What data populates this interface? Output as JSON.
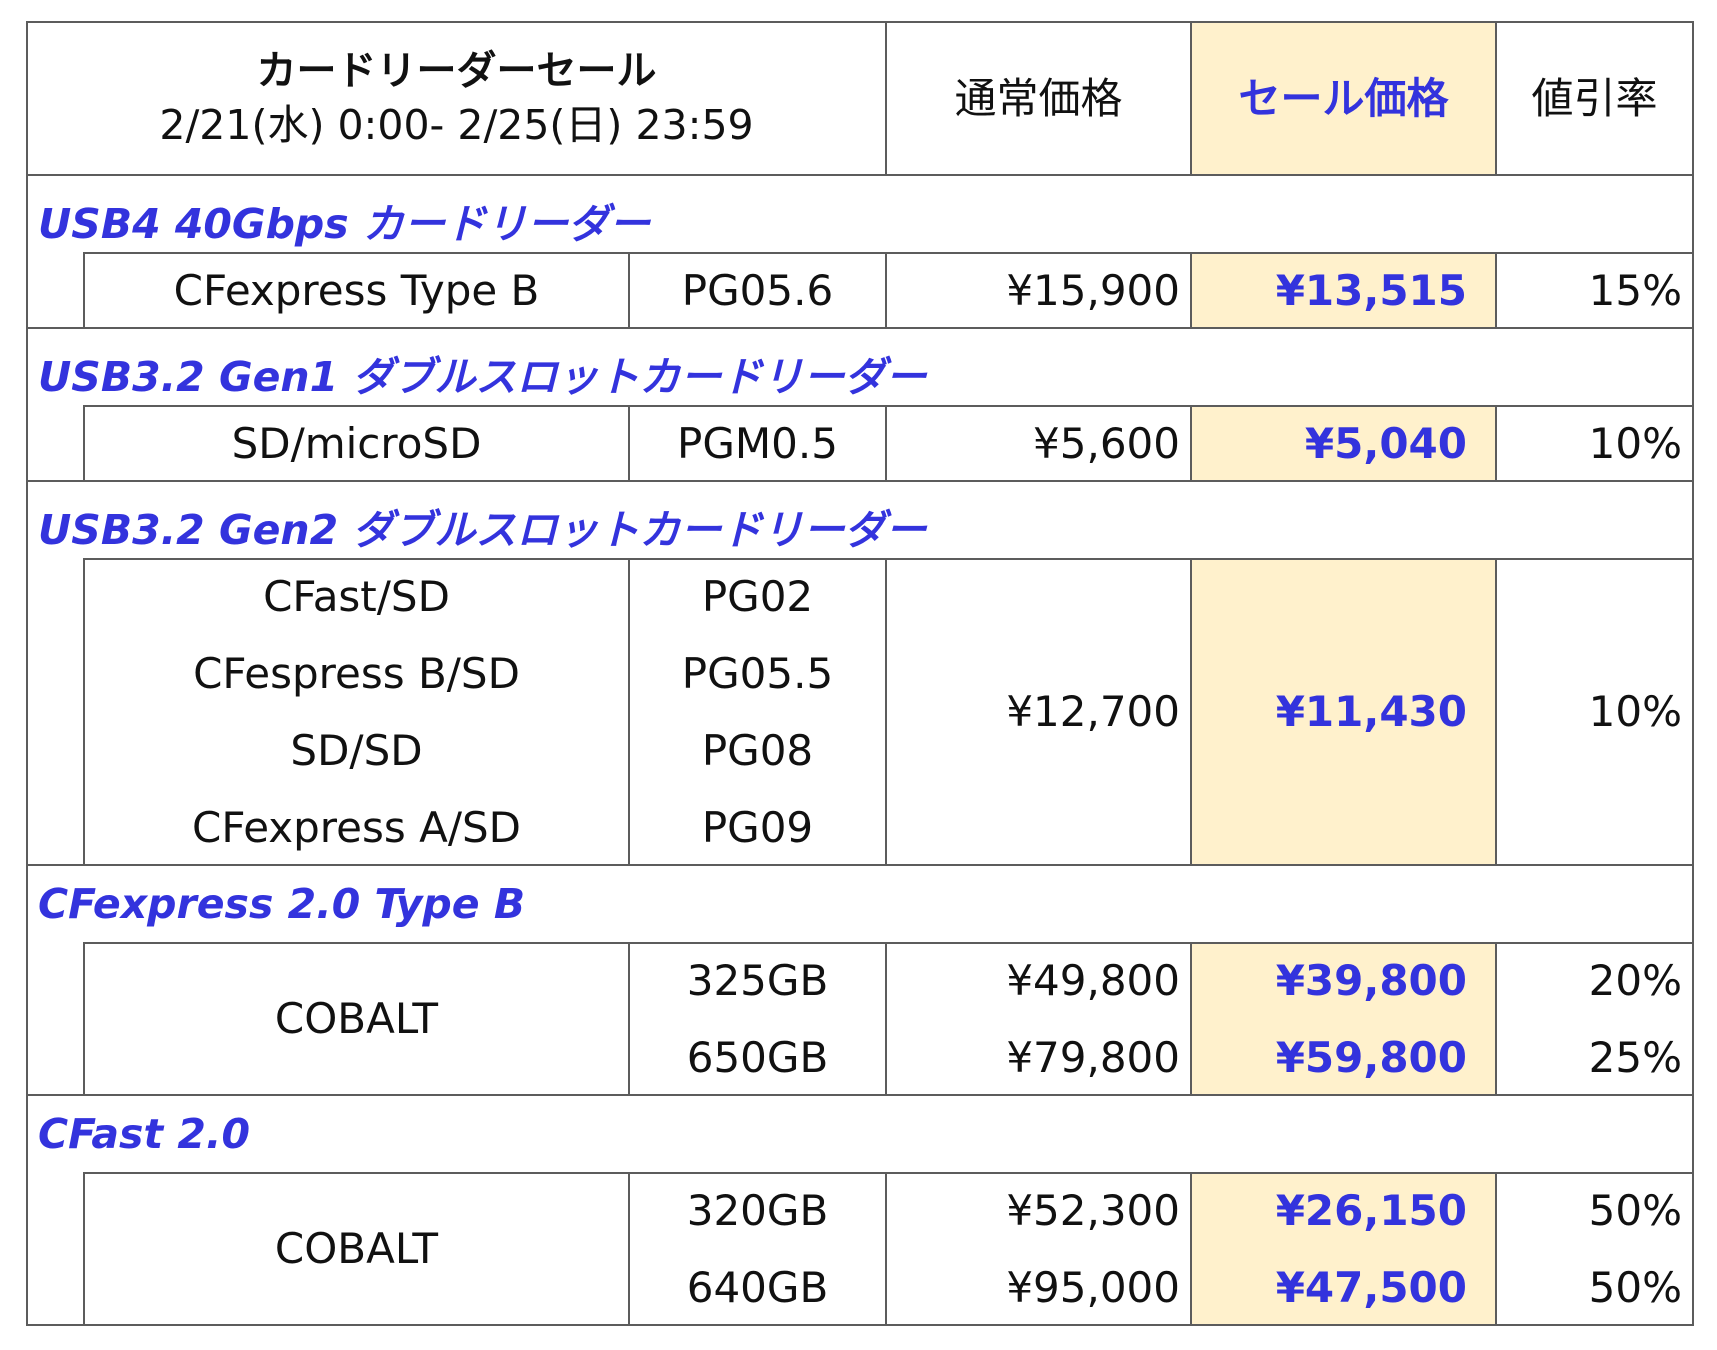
{
  "header": {
    "title": "カードリーダーセール",
    "period": "2/21(水) 0:00- 2/25(日) 23:59",
    "col_regular": "通常価格",
    "col_sale": "セール価格",
    "col_discount": "値引率"
  },
  "sections": [
    {
      "title": "USB4 40Gbps カードリーダー",
      "rows": [
        {
          "name": "CFexpress Type B",
          "model": "PG05.6",
          "regular": "¥15,900",
          "sale": "¥13,515",
          "discount": "15%"
        }
      ]
    },
    {
      "title": "USB3.2 Gen1 ダブルスロットカードリーダー",
      "rows": [
        {
          "name": "SD/microSD",
          "model": "PGM0.5",
          "regular": "¥5,600",
          "sale": "¥5,040",
          "discount": "10%"
        }
      ]
    },
    {
      "title": "USB3.2 Gen2 ダブルスロットカードリーダー",
      "items": [
        {
          "name": "CFast/SD",
          "model": "PG02"
        },
        {
          "name": "CFespress B/SD",
          "model": "PG05.5"
        },
        {
          "name": "SD/SD",
          "model": "PG08"
        },
        {
          "name": "CFexpress A/SD",
          "model": "PG09"
        }
      ],
      "regular": "¥12,700",
      "sale": "¥11,430",
      "discount": "10%"
    },
    {
      "title": "CFexpress 2.0 Type B",
      "name": "COBALT",
      "rows": [
        {
          "model": "325GB",
          "regular": "¥49,800",
          "sale": "¥39,800",
          "discount": "20%"
        },
        {
          "model": "650GB",
          "regular": "¥79,800",
          "sale": "¥59,800",
          "discount": "25%"
        }
      ]
    },
    {
      "title": "CFast 2.0",
      "name": "COBALT",
      "rows": [
        {
          "model": "320GB",
          "regular": "¥52,300",
          "sale": "¥26,150",
          "discount": "50%"
        },
        {
          "model": "640GB",
          "regular": "¥95,000",
          "sale": "¥47,500",
          "discount": "50%"
        }
      ]
    }
  ],
  "colors": {
    "accent": "#3333dd",
    "sale_bg": "#fff1cc",
    "border": "#5c5c5c"
  }
}
